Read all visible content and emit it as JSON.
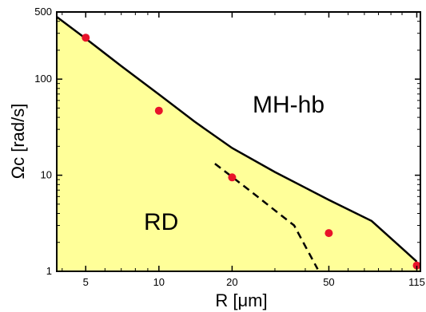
{
  "chart_data": {
    "type": "line",
    "xlabel": "R [μm]",
    "ylabel": "Ωc [rad/s]",
    "x_scale": "log",
    "y_scale": "log",
    "xlim": [
      3.8,
      119
    ],
    "ylim": [
      1,
      500
    ],
    "x_ticks": [
      5,
      10,
      20,
      50,
      115
    ],
    "x_tick_labels": [
      "5",
      "10",
      "20",
      "50",
      "115"
    ],
    "y_ticks": [
      1,
      10,
      100,
      500
    ],
    "y_tick_labels": [
      "1",
      "10",
      "100",
      "500"
    ],
    "grid": false,
    "legend": "none",
    "colors": {
      "fill": "#ffff99",
      "line": "#000000",
      "points": "#e8132a"
    },
    "regions": [
      {
        "label": "MH-hb"
      },
      {
        "label": "RD"
      }
    ],
    "series": [
      {
        "style": "points",
        "x": [
          5,
          10,
          20,
          50,
          115
        ],
        "y": [
          270,
          47,
          9.5,
          2.5,
          1.15
        ]
      },
      {
        "style": "solid",
        "x": [
          3.8,
          5,
          7,
          10,
          14,
          20,
          30,
          50,
          75,
          115
        ],
        "y": [
          445,
          264,
          137,
          69.5,
          36.2,
          19.2,
          10.8,
          5.54,
          3.34,
          1.26
        ]
      },
      {
        "style": "dashed",
        "x": [
          17,
          20,
          25,
          30,
          36,
          45
        ],
        "y": [
          13.2,
          9.6,
          6.2,
          4.3,
          3.0,
          1.05
        ]
      }
    ]
  }
}
